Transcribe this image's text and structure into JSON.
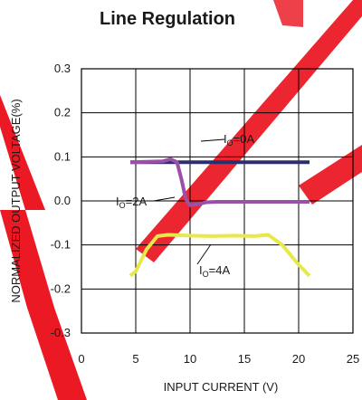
{
  "chart_data": {
    "type": "line",
    "title": "Line Regulation",
    "xlabel": "INPUT CURRENT (V)",
    "ylabel": "NORMALIZED OUTPUT VOLTAGE(%)",
    "xlim": [
      0,
      25
    ],
    "ylim": [
      -0.3,
      0.3
    ],
    "xticks": [
      0,
      5,
      10,
      15,
      20,
      25
    ],
    "yticks": [
      0.3,
      0.2,
      0.1,
      0.0,
      -0.1,
      -0.2,
      -0.3
    ],
    "xtick_labels": [
      "0",
      "5",
      "10",
      "15",
      "20",
      "25"
    ],
    "ytick_labels": [
      "0.3",
      "0.2",
      "0.1",
      "0.0",
      "-0.1",
      "-0.2",
      "-0.3"
    ],
    "grid": true,
    "series": [
      {
        "name": "IO=0A",
        "label_main": "I",
        "label_sub": "O",
        "label_rest": "=0A",
        "color": "#2b2f6b",
        "x": [
          4.5,
          21
        ],
        "y": [
          0.088,
          0.088
        ]
      },
      {
        "name": "IO=2A",
        "label_main": "I",
        "label_sub": "O",
        "label_rest": "=2A",
        "color": "#9b4fa8",
        "x": [
          4.5,
          7.5,
          8.2,
          8.8,
          9.2,
          9.6,
          10.0,
          10.6,
          11.5,
          12.5,
          21
        ],
        "y": [
          0.088,
          0.09,
          0.095,
          0.088,
          0.05,
          0.005,
          -0.01,
          -0.008,
          -0.003,
          -0.002,
          -0.002
        ]
      },
      {
        "name": "IO=4A",
        "label_main": "I",
        "label_sub": "O",
        "label_rest": "=4A",
        "color": "#e9e84a",
        "x": [
          4.5,
          5.0,
          6.0,
          7.0,
          8.0,
          10,
          12,
          14,
          16,
          17.2,
          18.5,
          20,
          21
        ],
        "y": [
          -0.17,
          -0.16,
          -0.11,
          -0.08,
          -0.077,
          -0.079,
          -0.08,
          -0.079,
          -0.08,
          -0.077,
          -0.1,
          -0.145,
          -0.17
        ]
      }
    ]
  },
  "colors": {
    "axis": "#000000",
    "text": "#1a1a1a",
    "watermark": "#e8000c"
  }
}
